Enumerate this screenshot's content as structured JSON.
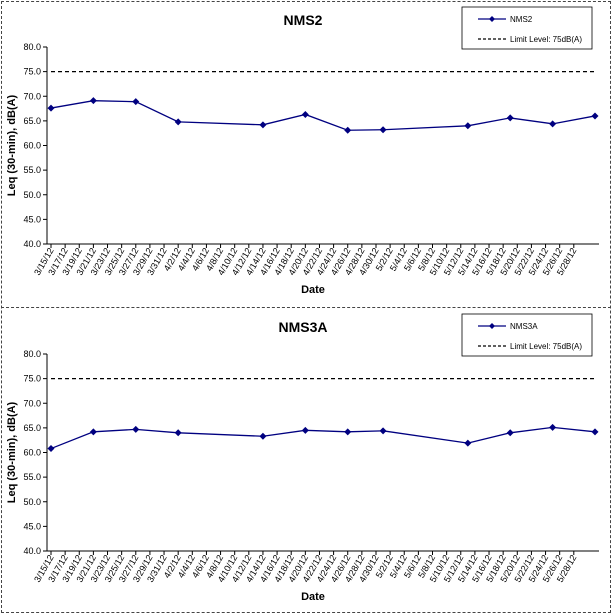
{
  "chart_data": [
    {
      "type": "line",
      "title": "NMS2",
      "xlabel": "Date",
      "ylabel": "Leq (30-min), dB(A)",
      "ylim": [
        40.0,
        80.0
      ],
      "y_ticks": [
        "40.0",
        "45.0",
        "50.0",
        "55.0",
        "60.0",
        "65.0",
        "70.0",
        "75.0",
        "80.0"
      ],
      "x_ticks": [
        "3/15/12",
        "3/17/12",
        "3/19/12",
        "3/21/12",
        "3/23/12",
        "3/25/12",
        "3/27/12",
        "3/29/12",
        "3/31/12",
        "4/2/12",
        "4/4/12",
        "4/6/12",
        "4/8/12",
        "4/10/12",
        "4/12/12",
        "4/14/12",
        "4/16/12",
        "4/18/12",
        "4/20/12",
        "4/22/12",
        "4/24/12",
        "4/26/12",
        "4/28/12",
        "4/30/12",
        "5/2/12",
        "5/4/12",
        "5/6/12",
        "5/8/12",
        "5/10/12",
        "5/12/12",
        "5/14/12",
        "5/16/12",
        "5/18/12",
        "5/20/12",
        "5/22/12",
        "5/24/12",
        "5/26/12",
        "5/28/12"
      ],
      "grid": false,
      "legend_position": "top-right",
      "series": [
        {
          "name": "NMS2",
          "color": "#000080",
          "x": [
            "3/15/12",
            "3/21/12",
            "3/27/12",
            "4/2/12",
            "4/14/12",
            "4/20/12",
            "4/26/12",
            "5/1/12",
            "5/13/12",
            "5/19/12",
            "5/25/12",
            "5/31/12"
          ],
          "values": [
            67.6,
            69.1,
            68.9,
            64.8,
            64.2,
            66.3,
            63.1,
            63.2,
            64.0,
            65.6,
            64.4,
            66.0
          ]
        },
        {
          "name": "Limit Level: 75dB(A)",
          "color": "#000000",
          "dashed": true,
          "x": [
            "3/15/12",
            "5/31/12"
          ],
          "values": [
            75.0,
            75.0
          ]
        }
      ]
    },
    {
      "type": "line",
      "title": "NMS3A",
      "xlabel": "Date",
      "ylabel": "Leq (30-min), dB(A)",
      "ylim": [
        40.0,
        80.0
      ],
      "y_ticks": [
        "40.0",
        "45.0",
        "50.0",
        "55.0",
        "60.0",
        "65.0",
        "70.0",
        "75.0",
        "80.0"
      ],
      "x_ticks": [
        "3/15/12",
        "3/17/12",
        "3/19/12",
        "3/21/12",
        "3/23/12",
        "3/25/12",
        "3/27/12",
        "3/29/12",
        "3/31/12",
        "4/2/12",
        "4/4/12",
        "4/6/12",
        "4/8/12",
        "4/10/12",
        "4/12/12",
        "4/14/12",
        "4/16/12",
        "4/18/12",
        "4/20/12",
        "4/22/12",
        "4/24/12",
        "4/26/12",
        "4/28/12",
        "4/30/12",
        "5/2/12",
        "5/4/12",
        "5/6/12",
        "5/8/12",
        "5/10/12",
        "5/12/12",
        "5/14/12",
        "5/16/12",
        "5/18/12",
        "5/20/12",
        "5/22/12",
        "5/24/12",
        "5/26/12",
        "5/28/12"
      ],
      "grid": false,
      "legend_position": "top-right",
      "series": [
        {
          "name": "NMS3A",
          "color": "#000080",
          "x": [
            "3/15/12",
            "3/21/12",
            "3/27/12",
            "4/2/12",
            "4/14/12",
            "4/20/12",
            "4/26/12",
            "5/1/12",
            "5/13/12",
            "5/19/12",
            "5/25/12",
            "5/31/12"
          ],
          "values": [
            60.8,
            64.2,
            64.7,
            64.0,
            63.3,
            64.5,
            64.2,
            64.4,
            61.9,
            64.0,
            65.1,
            64.2
          ]
        },
        {
          "name": "Limit Level: 75dB(A)",
          "color": "#000000",
          "dashed": true,
          "x": [
            "3/15/12",
            "5/31/12"
          ],
          "values": [
            75.0,
            75.0
          ]
        }
      ]
    }
  ]
}
